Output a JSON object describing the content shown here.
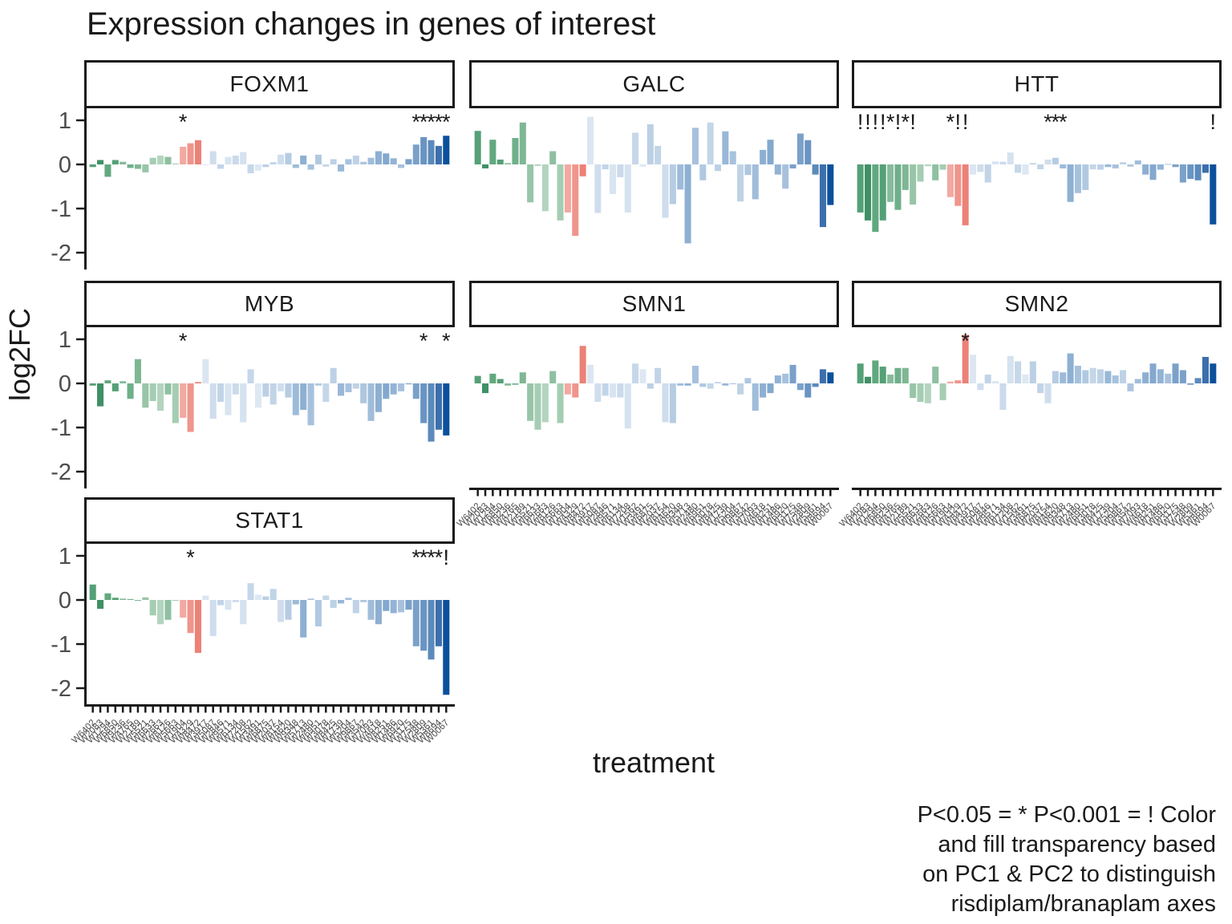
{
  "title": "Expression changes in genes of interest",
  "axis": {
    "y_label": "log2FC",
    "x_label": "treatment",
    "y_tick_labels": [
      "1",
      "0",
      "-1",
      "-2"
    ]
  },
  "caption": {
    "lines": [
      "P<0.05 = * P<0.001 = ! Color",
      "and fill transparency based",
      "on PC1 & PC2 to distinguish",
      "risdiplam/branaplam axes"
    ]
  },
  "chart_data": {
    "type": "bar",
    "facet_by": "gene",
    "title": "Expression changes in genes of interest",
    "xlabel": "treatment",
    "ylabel": "log2FC",
    "ylim": [
      -2.4,
      1.3
    ],
    "yticks": [
      1,
      0,
      -1,
      -2
    ],
    "grid": "off",
    "significance_legend": "P<0.05 = * , P<0.001 = !",
    "color_note": "color and fill transparency based on PC1 & PC2 to distinguish risdiplam/branaplam axes; treatments 1-12 green, 13-15 salmon, 16-48 blue",
    "treatments": [
      "W6402",
      "W2083",
      "W1294",
      "W6850",
      "W9236",
      "W4765",
      "W2189",
      "W5521",
      "W6633",
      "W2663",
      "W8126",
      "W5663",
      "W1904",
      "W4329",
      "W8472",
      "W3917",
      "W5087",
      "W2846",
      "W9571",
      "W6134",
      "W7208",
      "W1562",
      "W3491",
      "W6875",
      "W2037",
      "W8154",
      "W4620",
      "W9348",
      "W5713",
      "W2480",
      "W6951",
      "W3078",
      "W8425",
      "W1739",
      "W5204",
      "W9867",
      "W3542",
      "W7093",
      "W4618",
      "W8251",
      "W1486",
      "W6920",
      "W3175",
      "W7548",
      "W2809",
      "W5361",
      "W8694",
      "W0067"
    ],
    "bar_colors": [
      "#55a077",
      "#3f9066",
      "#62a87f",
      "#55a077",
      "#86bb9c",
      "#6fb08b",
      "#7fb795",
      "#98c5a8",
      "#a5cdb3",
      "#b3d4bf",
      "#8ec0a1",
      "#a5cdb3",
      "#f2a9a1",
      "#ef958c",
      "#ec8177",
      "#dbe6f2",
      "#cfdded",
      "#c2d4e8",
      "#d8e4f0",
      "#cbdaec",
      "#d5e2ef",
      "#c6d7ea",
      "#dde8f3",
      "#bcd0e5",
      "#c2d4e7",
      "#cfdded",
      "#b6cce3",
      "#9dbbd9",
      "#8db0d3",
      "#a6c1dd",
      "#b1c9e0",
      "#c4d6e8",
      "#bdd1e6",
      "#99b8d7",
      "#a8c2de",
      "#bfd2e6",
      "#aec6df",
      "#a1bdda",
      "#8eafd2",
      "#84a8ce",
      "#93b3d5",
      "#a7c1dd",
      "#7ba1c9",
      "#7ba1c9",
      "#6994c3",
      "#5b8abc",
      "#3d6fac",
      "#0b509c"
    ],
    "facets": [
      {
        "gene": "FOXM1",
        "values": [
          -0.06,
          0.1,
          -0.28,
          0.1,
          0.06,
          -0.08,
          -0.1,
          -0.18,
          0.15,
          0.2,
          0.17,
          0.02,
          0.4,
          0.48,
          0.55,
          0.0,
          0.3,
          -0.1,
          0.17,
          0.2,
          0.28,
          -0.2,
          -0.14,
          -0.06,
          0.05,
          0.22,
          0.26,
          -0.08,
          0.2,
          -0.12,
          0.22,
          -0.05,
          0.12,
          -0.16,
          0.12,
          0.2,
          0.06,
          0.15,
          0.3,
          0.25,
          0.14,
          -0.08,
          0.12,
          0.45,
          0.62,
          0.55,
          0.42,
          0.65
        ],
        "sig": {
          "13": "*",
          "44": "*",
          "45": "*",
          "46": "*",
          "47": "*",
          "48": "*"
        }
      },
      {
        "gene": "GALC",
        "values": [
          0.76,
          -0.09,
          0.56,
          0.11,
          0.03,
          0.6,
          0.95,
          -0.86,
          -0.03,
          -1.06,
          0.3,
          -1.27,
          -1.09,
          -1.62,
          -0.27,
          1.08,
          -1.1,
          -0.11,
          -0.67,
          -0.29,
          -1.09,
          0.72,
          -0.05,
          0.91,
          0.42,
          -1.21,
          -0.9,
          -0.57,
          -1.79,
          0.83,
          -0.36,
          0.95,
          -0.15,
          0.75,
          0.3,
          -0.84,
          -0.24,
          -0.79,
          0.33,
          0.56,
          -0.23,
          -0.55,
          -0.09,
          0.7,
          0.55,
          -0.23,
          -1.42,
          -0.92
        ],
        "sig": {}
      },
      {
        "gene": "HTT",
        "values": [
          -1.09,
          -1.27,
          -1.53,
          -1.27,
          -0.85,
          -1.03,
          -0.58,
          -0.91,
          -0.39,
          -0.04,
          -0.36,
          -0.12,
          -0.74,
          -0.94,
          -1.38,
          -0.23,
          -0.17,
          -0.41,
          0.07,
          0.06,
          0.27,
          -0.19,
          -0.23,
          0.03,
          -0.11,
          0.11,
          0.15,
          -0.09,
          -0.85,
          -0.65,
          -0.58,
          -0.11,
          -0.12,
          -0.06,
          -0.09,
          0.05,
          -0.05,
          0.09,
          -0.23,
          -0.35,
          -0.12,
          0.01,
          -0.06,
          -0.41,
          -0.33,
          -0.36,
          -0.19,
          -1.36
        ],
        "sig": {
          "1": "!",
          "2": "!",
          "3": "!",
          "4": "!",
          "5": "*",
          "6": "!",
          "7": "*",
          "8": "!",
          "13": "*",
          "14": "!",
          "15": "!",
          "26": "*",
          "27": "*",
          "28": "*",
          "48": "!"
        }
      },
      {
        "gene": "MYB",
        "values": [
          -0.05,
          -0.52,
          0.07,
          -0.18,
          0.05,
          -0.35,
          0.55,
          -0.55,
          -0.4,
          -0.62,
          -0.25,
          -0.9,
          -0.78,
          -1.1,
          0.03,
          0.55,
          -0.8,
          -0.42,
          -0.72,
          -0.25,
          -0.88,
          0.32,
          -0.55,
          -0.3,
          -0.48,
          -0.18,
          -0.32,
          -0.72,
          -0.6,
          -0.95,
          -0.05,
          -0.42,
          0.35,
          -0.28,
          -0.2,
          -0.12,
          -0.45,
          -0.85,
          -0.65,
          -0.35,
          -0.25,
          -0.18,
          -0.02,
          -0.35,
          -0.9,
          -1.32,
          -1.05,
          -1.18
        ],
        "sig": {
          "13": "*",
          "45": "*",
          "48": "*"
        }
      },
      {
        "gene": "SMN1",
        "values": [
          0.17,
          -0.22,
          0.22,
          0.1,
          -0.05,
          -0.03,
          0.25,
          -0.85,
          -1.05,
          -0.88,
          0.28,
          -0.9,
          -0.25,
          -0.32,
          0.85,
          0.42,
          -0.42,
          -0.28,
          -0.32,
          -0.32,
          -1.02,
          0.45,
          0.32,
          -0.12,
          0.35,
          -0.88,
          -0.9,
          -0.05,
          -0.05,
          0.4,
          -0.08,
          -0.12,
          0.03,
          -0.05,
          0.0,
          -0.25,
          0.12,
          -0.62,
          -0.32,
          -0.22,
          0.18,
          0.22,
          0.42,
          -0.15,
          -0.32,
          -0.08,
          0.32,
          0.25
        ],
        "sig": {}
      },
      {
        "gene": "SMN2",
        "values": [
          0.45,
          0.15,
          0.52,
          0.38,
          0.2,
          0.35,
          0.35,
          -0.33,
          -0.42,
          -0.45,
          0.38,
          -0.38,
          0.04,
          0.07,
          1.1,
          0.65,
          -0.15,
          0.2,
          0.05,
          -0.6,
          0.62,
          0.5,
          0.2,
          0.5,
          -0.22,
          -0.45,
          0.28,
          0.25,
          0.68,
          0.4,
          0.3,
          0.35,
          0.32,
          0.28,
          0.18,
          0.3,
          -0.18,
          0.1,
          0.25,
          0.45,
          0.32,
          0.22,
          0.45,
          0.3,
          -0.03,
          0.12,
          0.6,
          0.45
        ],
        "sig": {
          "15": "*"
        }
      },
      {
        "gene": "STAT1",
        "values": [
          0.35,
          -0.2,
          0.15,
          0.05,
          0.03,
          0.02,
          -0.02,
          0.06,
          -0.35,
          -0.55,
          -0.45,
          -0.02,
          -0.4,
          -0.75,
          -1.2,
          0.1,
          -0.82,
          -0.12,
          -0.22,
          -0.05,
          -0.55,
          0.38,
          0.12,
          0.08,
          0.25,
          -0.5,
          -0.45,
          -0.1,
          -0.85,
          0.03,
          -0.6,
          0.1,
          -0.18,
          -0.08,
          0.05,
          -0.3,
          -0.05,
          -0.45,
          -0.55,
          -0.25,
          -0.3,
          -0.28,
          -0.22,
          -1.05,
          -1.15,
          -1.35,
          -1.05,
          -2.15
        ],
        "sig": {
          "14": "*",
          "44": "*",
          "45": "*",
          "46": "*",
          "47": "*",
          "48": "!"
        }
      }
    ]
  }
}
